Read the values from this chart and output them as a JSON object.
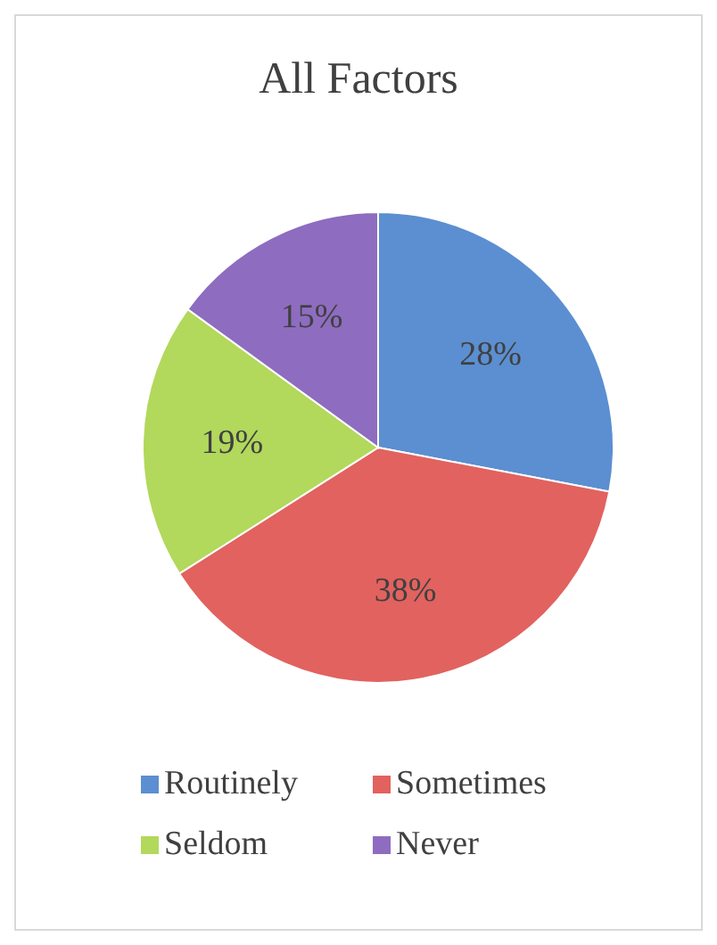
{
  "chart_data": {
    "type": "pie",
    "title": "All Factors",
    "categories": [
      "Routinely",
      "Sometimes",
      "Seldom",
      "Never"
    ],
    "values": [
      28,
      38,
      19,
      15
    ],
    "colors": [
      "#5b8fd1",
      "#e2625f",
      "#b2d85c",
      "#8e6cc0"
    ],
    "value_labels": [
      "28%",
      "38%",
      "19%",
      "15%"
    ],
    "legend": "bottom"
  }
}
